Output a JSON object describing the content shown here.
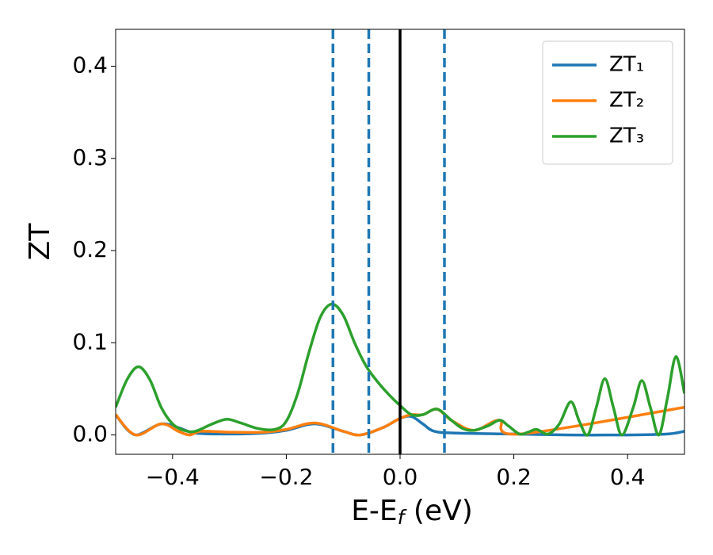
{
  "chart_data": {
    "type": "line",
    "x_label": [
      "E-E",
      "f",
      " (eV)"
    ],
    "y_label": "ZT",
    "xlim": [
      -0.5,
      0.5
    ],
    "ylim": [
      -0.021,
      0.44
    ],
    "xticks": [
      {
        "value": -0.4,
        "label": "−0.4"
      },
      {
        "value": -0.2,
        "label": "−0.2"
      },
      {
        "value": 0.0,
        "label": "0.0"
      },
      0.2,
      0.4
    ],
    "yticks": [
      {
        "value": 0.0,
        "label": "0.0"
      },
      0.1,
      0.2,
      0.3,
      0.4
    ],
    "legend": "upper right",
    "series": [
      {
        "name": "ZT₁",
        "color": "#1f77b4",
        "x": [
          -0.5,
          -0.48,
          -0.465,
          -0.45,
          -0.42,
          -0.39,
          -0.36,
          -0.3,
          -0.24,
          -0.2,
          -0.15,
          -0.1,
          -0.07,
          -0.03,
          0.0,
          0.02,
          0.04,
          0.06,
          0.1,
          0.2,
          0.3,
          0.4,
          0.47,
          0.5
        ],
        "values": [
          0.022,
          0.006,
          0.0,
          0.003,
          0.012,
          0.008,
          0.002,
          0.001,
          0.002,
          0.005,
          0.012,
          0.004,
          0.0,
          0.008,
          0.018,
          0.02,
          0.012,
          0.004,
          0.002,
          0.001,
          0.0,
          0.0,
          0.001,
          0.004
        ]
      },
      {
        "name": "ZT₂",
        "color": "#ff7f0e",
        "x": [
          -0.5,
          -0.465,
          -0.42,
          -0.39,
          -0.37,
          -0.35,
          -0.3,
          -0.24,
          -0.2,
          -0.15,
          -0.1,
          -0.07,
          -0.03,
          0.0,
          0.02,
          0.04,
          0.065,
          0.09,
          0.13,
          0.175,
          0.21,
          0.5
        ],
        "values": [
          0.022,
          0.0,
          0.012,
          0.004,
          0.0,
          0.004,
          0.003,
          0.003,
          0.006,
          0.013,
          0.004,
          0.0,
          0.008,
          0.018,
          0.022,
          0.022,
          0.028,
          0.016,
          0.005,
          0.016,
          0.001,
          0.03
        ]
      },
      {
        "name": "ZT₃",
        "color": "#2ca02c",
        "x": [
          -0.5,
          -0.48,
          -0.46,
          -0.44,
          -0.42,
          -0.4,
          -0.38,
          -0.36,
          -0.33,
          -0.305,
          -0.28,
          -0.25,
          -0.22,
          -0.2,
          -0.18,
          -0.16,
          -0.14,
          -0.12,
          -0.1,
          -0.08,
          -0.06,
          -0.04,
          -0.02,
          0.0,
          0.02,
          0.04,
          0.065,
          0.09,
          0.11,
          0.13,
          0.155,
          0.175,
          0.19,
          0.21,
          0.225,
          0.24,
          0.26,
          0.28,
          0.3,
          0.315,
          0.33,
          0.345,
          0.36,
          0.375,
          0.39,
          0.41,
          0.425,
          0.44,
          0.455,
          0.47,
          0.485,
          0.5
        ],
        "values": [
          0.03,
          0.06,
          0.074,
          0.06,
          0.03,
          0.012,
          0.005,
          0.004,
          0.012,
          0.017,
          0.013,
          0.007,
          0.006,
          0.015,
          0.045,
          0.09,
          0.128,
          0.142,
          0.13,
          0.1,
          0.075,
          0.058,
          0.044,
          0.032,
          0.022,
          0.022,
          0.028,
          0.016,
          0.007,
          0.005,
          0.01,
          0.016,
          0.01,
          0.001,
          0.003,
          0.006,
          0.001,
          0.012,
          0.036,
          0.015,
          0.0,
          0.03,
          0.061,
          0.03,
          0.0,
          0.03,
          0.059,
          0.03,
          0.0,
          0.04,
          0.085,
          0.045
        ]
      }
    ],
    "vlines": [
      {
        "x": -0.118,
        "color": "#1f77b4",
        "style": "dashed"
      },
      {
        "x": -0.055,
        "color": "#1f77b4",
        "style": "dashed"
      },
      {
        "x": 0.0,
        "color": "#000000",
        "style": "solid"
      },
      {
        "x": 0.078,
        "color": "#1f77b4",
        "style": "dashed"
      }
    ]
  }
}
